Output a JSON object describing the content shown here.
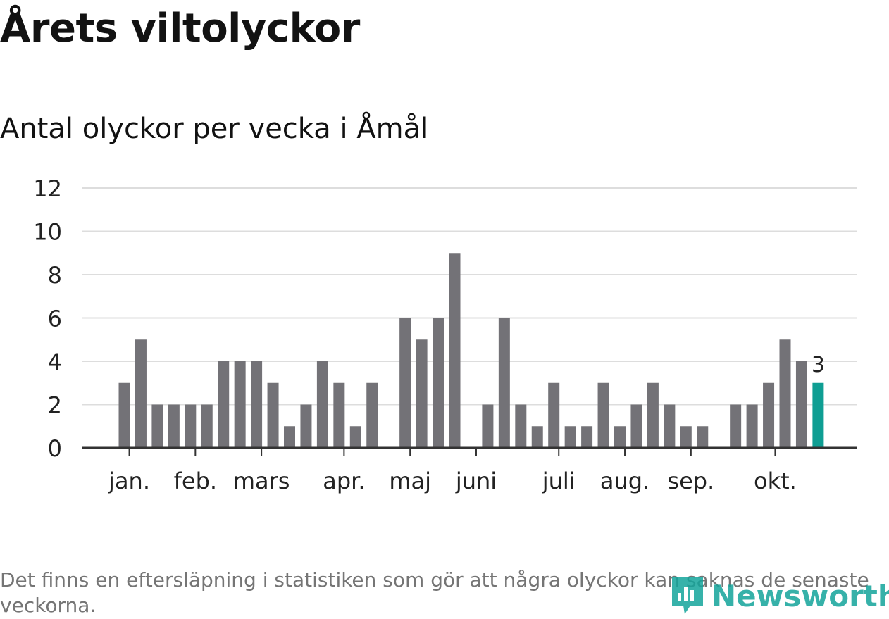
{
  "header": {
    "title": "Årets viltolyckor",
    "subtitle": "Antal olyckor per vecka i Åmål"
  },
  "footer": {
    "note": "Det finns en eftersläpning i statistiken som gör att några olyckor kan saknas de senaste veckorna.",
    "logo_text": "Newsworthy"
  },
  "colors": {
    "bar": "#737277",
    "highlight": "#0f9e93",
    "grid": "#dddddd",
    "axis": "#333333",
    "text": "#222222",
    "logo": "#14a49b"
  },
  "chart_data": {
    "type": "bar",
    "title": "Antal olyckor per vecka i Åmål",
    "xlabel": "",
    "ylabel": "",
    "ylim": [
      0,
      12
    ],
    "yticks": [
      0,
      2,
      4,
      6,
      8,
      10,
      12
    ],
    "grid": true,
    "weeks": [
      1,
      2,
      3,
      4,
      5,
      6,
      7,
      8,
      9,
      10,
      11,
      12,
      13,
      14,
      15,
      16,
      17,
      18,
      19,
      20,
      21,
      22,
      23,
      24,
      25,
      26,
      27,
      28,
      29,
      30,
      31,
      32,
      33,
      34,
      35,
      36,
      37,
      38,
      39,
      40,
      41,
      42,
      43
    ],
    "values": [
      3,
      5,
      2,
      2,
      2,
      2,
      4,
      4,
      4,
      3,
      1,
      2,
      4,
      3,
      1,
      3,
      0,
      6,
      5,
      6,
      9,
      0,
      2,
      6,
      2,
      1,
      3,
      1,
      1,
      3,
      1,
      2,
      3,
      2,
      1,
      1,
      0,
      2,
      2,
      3,
      5,
      4,
      3
    ],
    "month_labels": [
      {
        "label": "jan.",
        "week": 1.3
      },
      {
        "label": "feb.",
        "week": 5.3
      },
      {
        "label": "mars",
        "week": 9.3
      },
      {
        "label": "apr.",
        "week": 14.3
      },
      {
        "label": "maj",
        "week": 18.3
      },
      {
        "label": "juni",
        "week": 22.3
      },
      {
        "label": "juli",
        "week": 27.3
      },
      {
        "label": "aug.",
        "week": 31.3
      },
      {
        "label": "sep.",
        "week": 35.3
      },
      {
        "label": "okt.",
        "week": 40.4
      }
    ],
    "highlight": {
      "week": 43,
      "value": 3,
      "label": "3"
    }
  }
}
